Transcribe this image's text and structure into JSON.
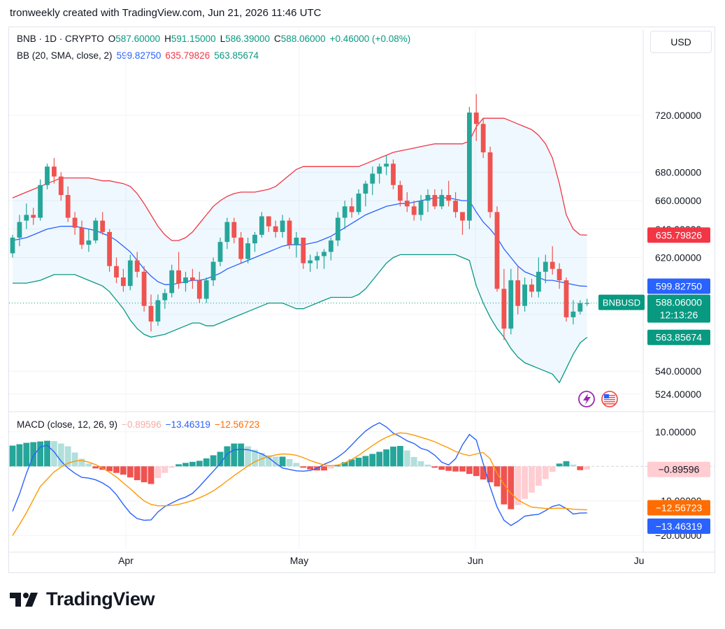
{
  "header": {
    "text": "tronweekly created with TradingView.com, Jun 21, 2026 11:46 UTC"
  },
  "legend": {
    "symbol": "BNB · 1D · CRYPTO",
    "o_label": "O",
    "o_value": "587.60000",
    "h_label": "H",
    "h_value": "591.15000",
    "l_label": "L",
    "l_value": "586.39000",
    "c_label": "C",
    "c_value": "588.06000",
    "change": "+0.46000 (+0.08%)",
    "bb_label": "BB (20, SMA, close, 2)",
    "bb_basis": "599.82750",
    "bb_upper": "635.79826",
    "bb_lower": "563.85674",
    "macd_label": "MACD (close, 12, 26, 9)",
    "macd_hist": "−0.89596",
    "macd_line": "−13.46319",
    "macd_signal": "−12.56723"
  },
  "currency_button": "USD",
  "brand": "TradingView",
  "colors": {
    "up": "#26a69a",
    "down": "#ef5350",
    "basis": "#2962ff",
    "upper": "#f23645",
    "lower": "#089981",
    "macd": "#2962ff",
    "signal": "#ff9800",
    "hist_up": "#26a69a",
    "hist_down": "#ef5350"
  },
  "chart_data": [
    {
      "type": "candlestick",
      "title": "BNB · 1D · CRYPTO",
      "ylim": [
        518,
        752
      ],
      "y_ticks": [
        720,
        680,
        660,
        620,
        540,
        524
      ],
      "y_ticks_partial": [
        640,
        580
      ],
      "y_tick_labels": {
        "720": "720.00000",
        "680": "680.00000",
        "660": "660.00000",
        "620": "620.00000",
        "540": "540.00000",
        "524": "524.00000",
        "640": "640.00000",
        "580": "580.00000"
      },
      "x_ticks": [
        "Apr",
        "May",
        "Jun",
        "Ju"
      ],
      "ohlc": [
        [
          623,
          636,
          620,
          634
        ],
        [
          634,
          650,
          628,
          645
        ],
        [
          646,
          658,
          640,
          650
        ],
        [
          650,
          655,
          643,
          648
        ],
        [
          648,
          675,
          646,
          671
        ],
        [
          671,
          686,
          668,
          684
        ],
        [
          684,
          690,
          672,
          677
        ],
        [
          677,
          680,
          660,
          664
        ],
        [
          664,
          670,
          645,
          648
        ],
        [
          648,
          652,
          636,
          641
        ],
        [
          641,
          646,
          626,
          629
        ],
        [
          629,
          640,
          624,
          632
        ],
        [
          632,
          648,
          630,
          646
        ],
        [
          646,
          652,
          636,
          638
        ],
        [
          638,
          640,
          610,
          614
        ],
        [
          614,
          620,
          602,
          606
        ],
        [
          606,
          612,
          596,
          600
        ],
        [
          600,
          622,
          597,
          618
        ],
        [
          618,
          624,
          606,
          610
        ],
        [
          610,
          614,
          582,
          586
        ],
        [
          586,
          594,
          568,
          575
        ],
        [
          575,
          594,
          572,
          590
        ],
        [
          590,
          598,
          584,
          595
        ],
        [
          595,
          615,
          592,
          611
        ],
        [
          611,
          624,
          598,
          602
        ],
        [
          602,
          610,
          596,
          606
        ],
        [
          606,
          612,
          598,
          604
        ],
        [
          604,
          610,
          588,
          591
        ],
        [
          591,
          606,
          588,
          604
        ],
        [
          604,
          620,
          600,
          617
        ],
        [
          617,
          634,
          614,
          631
        ],
        [
          631,
          648,
          626,
          645
        ],
        [
          645,
          648,
          630,
          634
        ],
        [
          634,
          638,
          616,
          619
        ],
        [
          619,
          634,
          616,
          630
        ],
        [
          630,
          638,
          624,
          636
        ],
        [
          636,
          652,
          634,
          649
        ],
        [
          649,
          648,
          638,
          642
        ],
        [
          642,
          646,
          634,
          638
        ],
        [
          638,
          650,
          634,
          646
        ],
        [
          646,
          648,
          626,
          629
        ],
        [
          629,
          638,
          620,
          634
        ],
        [
          634,
          632,
          612,
          616
        ],
        [
          616,
          622,
          610,
          618
        ],
        [
          618,
          624,
          612,
          621
        ],
        [
          621,
          626,
          612,
          624
        ],
        [
          624,
          634,
          618,
          632
        ],
        [
          632,
          652,
          628,
          648
        ],
        [
          648,
          660,
          640,
          656
        ],
        [
          656,
          662,
          648,
          652
        ],
        [
          652,
          668,
          650,
          665
        ],
        [
          665,
          674,
          656,
          672
        ],
        [
          672,
          684,
          664,
          679
        ],
        [
          679,
          686,
          672,
          684
        ],
        [
          684,
          692,
          678,
          686
        ],
        [
          686,
          689,
          668,
          671
        ],
        [
          671,
          674,
          656,
          660
        ],
        [
          660,
          666,
          652,
          656
        ],
        [
          656,
          660,
          646,
          650
        ],
        [
          650,
          664,
          646,
          660
        ],
        [
          660,
          668,
          652,
          664
        ],
        [
          664,
          668,
          654,
          656
        ],
        [
          656,
          668,
          654,
          664
        ],
        [
          664,
          674,
          656,
          660
        ],
        [
          660,
          666,
          648,
          652
        ],
        [
          652,
          650,
          636,
          646
        ],
        [
          646,
          726,
          640,
          722
        ],
        [
          722,
          735,
          702,
          714
        ],
        [
          714,
          718,
          690,
          694
        ],
        [
          694,
          698,
          648,
          652
        ],
        [
          652,
          656,
          596,
          598
        ],
        [
          598,
          612,
          562,
          570
        ],
        [
          570,
          612,
          566,
          604
        ],
        [
          604,
          614,
          580,
          586
        ],
        [
          586,
          606,
          582,
          601
        ],
        [
          601,
          605,
          592,
          596
        ],
        [
          596,
          620,
          592,
          610
        ],
        [
          610,
          622,
          602,
          617
        ],
        [
          617,
          628,
          608,
          612
        ],
        [
          612,
          616,
          598,
          604
        ],
        [
          604,
          606,
          575,
          578
        ],
        [
          578,
          590,
          573,
          582
        ],
        [
          582,
          590,
          580,
          588
        ],
        [
          588,
          591,
          586,
          588
        ]
      ],
      "bb_basis": [
        632,
        633,
        634,
        636,
        638,
        640,
        641,
        642,
        642,
        642,
        641,
        640,
        639,
        637,
        635,
        632,
        628,
        624,
        618,
        612,
        607,
        603,
        601,
        601,
        602,
        603,
        604,
        604,
        605,
        607,
        609,
        612,
        614,
        616,
        618,
        620,
        622,
        624,
        626,
        628,
        629,
        629,
        629,
        630,
        631,
        633,
        635,
        638,
        641,
        644,
        647,
        650,
        652,
        654,
        656,
        657,
        658,
        658,
        659,
        660,
        661,
        662,
        662,
        662,
        661,
        660,
        660,
        652,
        645,
        640,
        634,
        626,
        620,
        614,
        610,
        608,
        606,
        604,
        604,
        603,
        602,
        601,
        600,
        599.8
      ],
      "bb_upper": [
        662,
        664,
        666,
        668,
        670,
        672,
        674,
        676,
        676,
        676,
        676,
        676,
        675,
        674,
        674,
        673,
        672,
        670,
        665,
        658,
        650,
        642,
        636,
        632,
        632,
        634,
        638,
        644,
        650,
        656,
        660,
        663,
        665,
        666,
        666,
        666,
        667,
        668,
        670,
        674,
        678,
        682,
        684,
        684,
        684,
        684,
        684,
        684,
        684,
        684,
        684,
        686,
        688,
        690,
        692,
        694,
        695,
        696,
        697,
        698,
        699,
        700,
        700,
        700,
        700,
        700,
        702,
        712,
        718,
        718,
        718,
        718,
        716,
        714,
        712,
        710,
        706,
        700,
        690,
        672,
        650,
        640,
        636,
        635.8
      ],
      "bb_lower": [
        602,
        602,
        602,
        603,
        604,
        606,
        608,
        608,
        608,
        608,
        606,
        604,
        602,
        600,
        596,
        590,
        584,
        576,
        570,
        566,
        564,
        565,
        566,
        568,
        570,
        572,
        574,
        574,
        572,
        572,
        574,
        576,
        578,
        580,
        582,
        584,
        586,
        588,
        588,
        588,
        586,
        584,
        584,
        586,
        588,
        590,
        592,
        592,
        592,
        592,
        594,
        598,
        604,
        610,
        616,
        620,
        622,
        622,
        622,
        622,
        622,
        622,
        622,
        622,
        622,
        620,
        618,
        600,
        588,
        578,
        570,
        564,
        556,
        550,
        546,
        544,
        542,
        540,
        538,
        532,
        542,
        552,
        560,
        563.9
      ]
    },
    {
      "type": "bar+line",
      "title": "MACD (close, 12, 26, 9)",
      "ylim": [
        -24,
        14
      ],
      "y_ticks": [
        10,
        -10,
        -20
      ],
      "y_tick_labels": {
        "10": "10.00000",
        "-10": "−10.00000",
        "-20": "−20.00000"
      },
      "series": [
        {
          "name": "histogram",
          "values": [
            6,
            6.4,
            6.8,
            7,
            7.2,
            7.4,
            7.3,
            6.6,
            5.8,
            4,
            2.2,
            0.8,
            -0.6,
            -1,
            -1.4,
            -1.9,
            -2.4,
            -3.2,
            -4,
            -4.6,
            -5.1,
            -3.4,
            -1.9,
            -0.4,
            0.6,
            1,
            1.3,
            1.6,
            2.3,
            3.2,
            4.2,
            5.8,
            6.6,
            6.6,
            5.8,
            4.8,
            3.9,
            3.2,
            2.8,
            2.8,
            2.1,
            1,
            -0.4,
            -0.9,
            -1.2,
            -1.2,
            -0.6,
            0.3,
            1.2,
            2,
            2.5,
            3,
            3.6,
            4.2,
            4.9,
            5.7,
            5.9,
            4.6,
            2.7,
            1.5,
            0.5,
            -0.4,
            -1,
            -1.3,
            -1.5,
            -1.5,
            -2.2,
            -2.8,
            -3.8,
            -4.6,
            -5.8,
            -11,
            -12.4,
            -11.2,
            -9.4,
            -7.6,
            -5.6,
            -3.7,
            -1.6,
            0.8,
            1.5,
            0.5,
            -1.1,
            -0.9
          ]
        },
        {
          "name": "macd",
          "values": [
            -13,
            -8,
            -2,
            3,
            5.6,
            6.1,
            4.2,
            1.5,
            -0.5,
            -2,
            -3.2,
            -3.4,
            -3.9,
            -4.8,
            -6.1,
            -8.2,
            -11,
            -13.5,
            -15.1,
            -15.6,
            -15.5,
            -13.2,
            -11.6,
            -10.6,
            -9.6,
            -8.9,
            -7.8,
            -5.8,
            -3.6,
            -1.4,
            0.8,
            3.6,
            4.8,
            4.9,
            4.8,
            4.3,
            3.6,
            2.5,
            0.9,
            -0.5,
            -0.9,
            -1.3,
            -1.4,
            -1.2,
            -0.6,
            0.6,
            1.4,
            2.7,
            4.2,
            6.2,
            8.3,
            10.2,
            11.6,
            12.6,
            11.4,
            9.6,
            8.6,
            7.4,
            6.6,
            5.2,
            4.6,
            3.2,
            1.2,
            0.4,
            2.2,
            6.2,
            9.2,
            7.6,
            0.8,
            -6,
            -11.8,
            -15.6,
            -17.1,
            -15.9,
            -14.4,
            -14.1,
            -13.9,
            -12.8,
            -11.6,
            -11.1,
            -12.2,
            -13.8,
            -13.5,
            -13.46
          ]
        },
        {
          "name": "signal",
          "values": [
            -20,
            -16.8,
            -13.4,
            -9.6,
            -5.8,
            -3.7,
            -1.6,
            -0.2,
            0.9,
            1.5,
            1.7,
            1.2,
            0.5,
            -0.5,
            -1.7,
            -3.1,
            -4.8,
            -6.5,
            -8.3,
            -10,
            -11,
            -11.4,
            -11.4,
            -11.3,
            -11,
            -10.5,
            -9.9,
            -9.1,
            -8.2,
            -7.1,
            -5.7,
            -4.2,
            -2.7,
            -1.3,
            0.1,
            1.3,
            2.2,
            2.8,
            3.3,
            3.6,
            3.5,
            3.2,
            2.5,
            1.7,
            1,
            0.4,
            0.2,
            0.4,
            1,
            2,
            3.2,
            4.6,
            6,
            7.3,
            8.4,
            9.2,
            9.7,
            9.5,
            9,
            8.4,
            7.8,
            7.1,
            6.2,
            5.3,
            4.3,
            3.6,
            3.1,
            3.6,
            4,
            2.2,
            -2,
            -5.2,
            -7.8,
            -9.7,
            -10.8,
            -11.8,
            -12,
            -12.2,
            -12.2,
            -12.1,
            -12.2,
            -12.4,
            -12.5,
            -12.57
          ]
        }
      ]
    }
  ],
  "price_tags": {
    "upper_price": "635.79826",
    "basis_price": "599.82750",
    "last_symbol": "BNBUSD",
    "last_price": "588.06000",
    "countdown": "12:13:26",
    "lower_price": "563.85674",
    "macd_hist_tag": "−0.89596",
    "macd_signal_tag": "−12.56723",
    "macd_line_tag": "−13.46319"
  }
}
